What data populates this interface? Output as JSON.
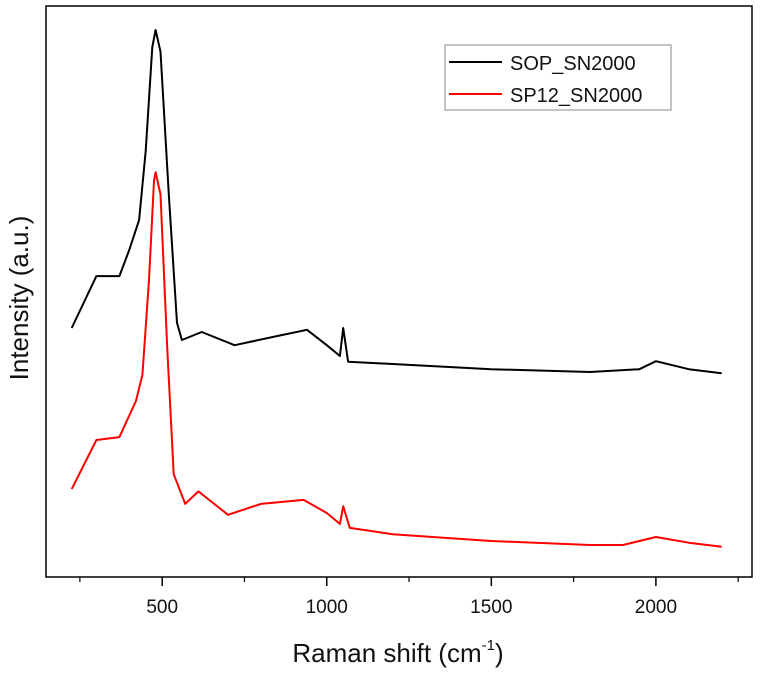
{
  "chart_data": {
    "type": "line",
    "title": "",
    "xlabel": "Raman shift (cm",
    "xlabel_superscript": "-1",
    "xlabel_close": ")",
    "ylabel": "Intensity (a.u.)",
    "xlim": [
      147,
      2292
    ],
    "ylim": [
      0,
      100
    ],
    "xticks": [
      500,
      1000,
      1500,
      2000
    ],
    "xtick_labels": [
      "500",
      "1000",
      "1500",
      "2000"
    ],
    "minor_xticks": [
      250,
      750,
      1250,
      1750,
      2250
    ],
    "yticks_shown": false,
    "grid": false,
    "legend_position": "top-right",
    "series": [
      {
        "name": "SOP_SN2000",
        "color": "#000000",
        "x": [
          225,
          300,
          370,
          400,
          430,
          450,
          470,
          480,
          495,
          520,
          545,
          560,
          620,
          720,
          850,
          940,
          1000,
          1040,
          1050,
          1065,
          1200,
          1500,
          1800,
          1950,
          2000,
          2100,
          2200
        ],
        "y": [
          43.6,
          52.7,
          52.7,
          57.3,
          62.5,
          74.6,
          92.8,
          95.8,
          92,
          67,
          44.5,
          41.5,
          42.9,
          40.6,
          42.2,
          43.3,
          40.6,
          38.7,
          43.6,
          37.7,
          37.3,
          36.4,
          35.9,
          36.4,
          37.8,
          36.4,
          35.7
        ]
      },
      {
        "name": "SP12_SN2000",
        "color": "#ff0000",
        "x": [
          225,
          300,
          370,
          420,
          440,
          460,
          475,
          480,
          495,
          515,
          535,
          570,
          610,
          700,
          800,
          930,
          1000,
          1040,
          1050,
          1070,
          1200,
          1500,
          1800,
          1900,
          2000,
          2100,
          2200
        ],
        "y": [
          15.4,
          24,
          24.5,
          30.8,
          35.4,
          52,
          69.4,
          70.9,
          67,
          40.6,
          18,
          12.8,
          15,
          10.9,
          12.8,
          13.5,
          11.2,
          9.3,
          12.4,
          8.6,
          7.5,
          6.3,
          5.6,
          5.6,
          7,
          6,
          5.3
        ]
      }
    ]
  }
}
